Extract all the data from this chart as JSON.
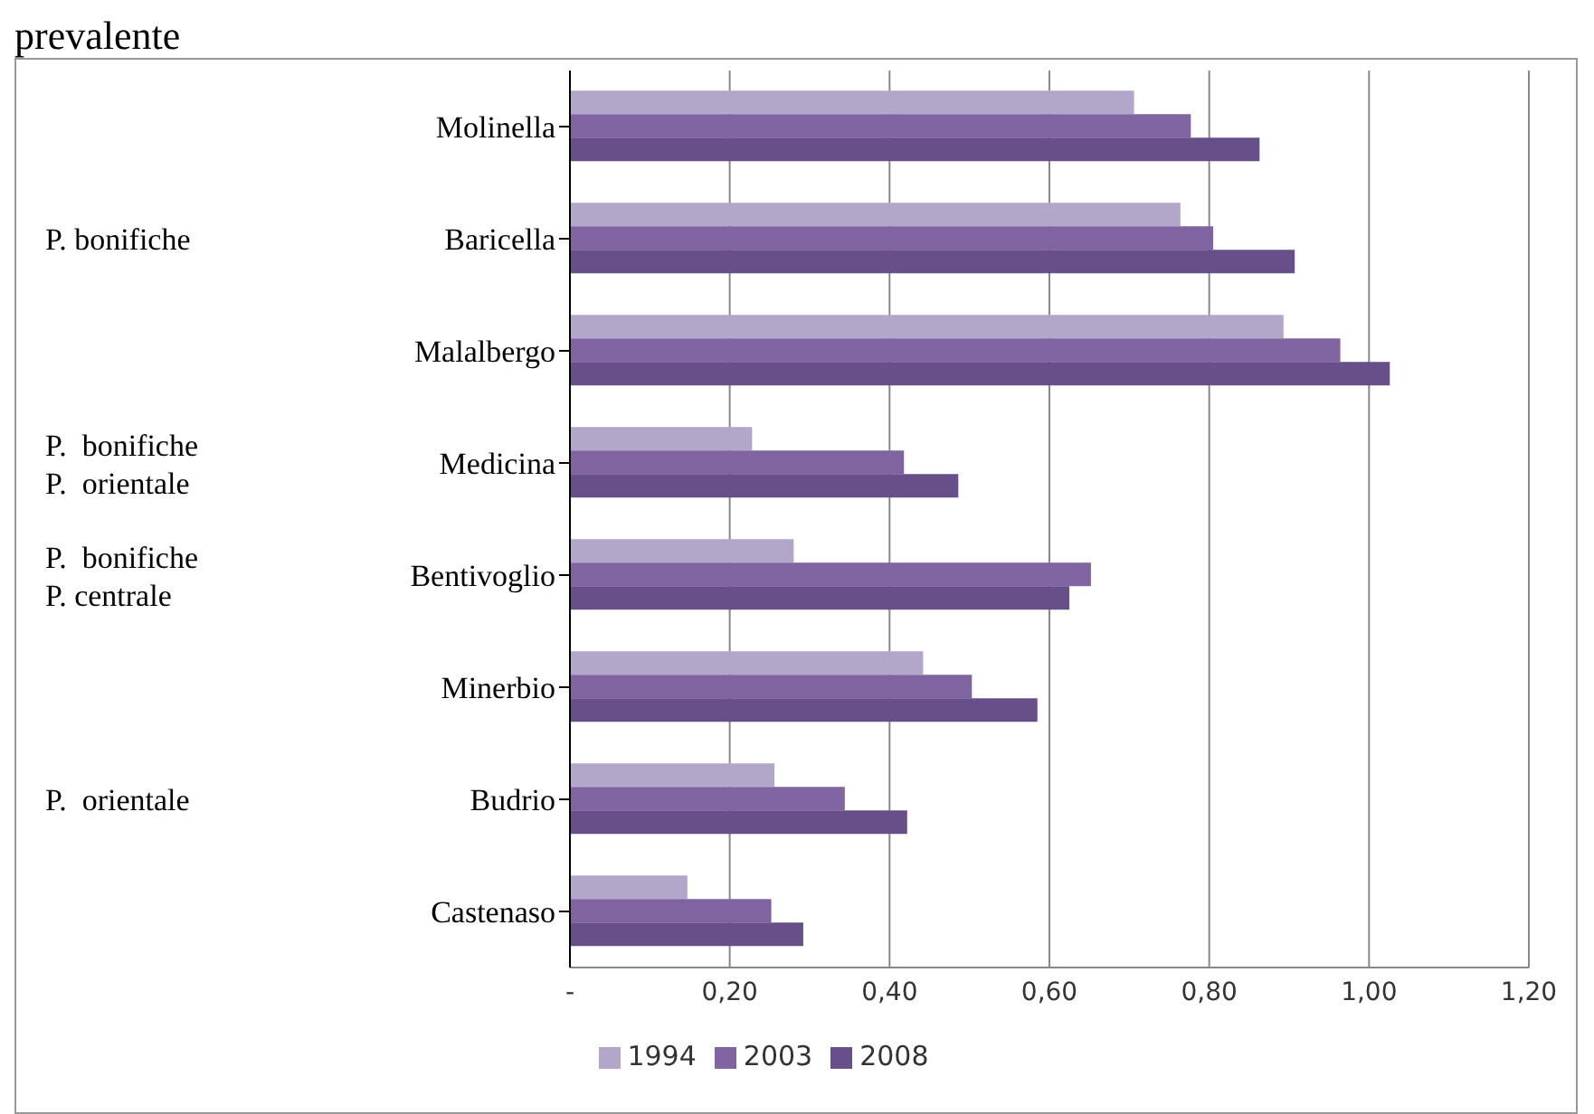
{
  "chart_data": {
    "type": "bar",
    "orientation": "horizontal",
    "title": "prevalente",
    "categories": [
      "Molinella",
      "Baricella",
      "Malalbergo",
      "Medicina",
      "Bentivoglio",
      "Minerbio",
      "Budrio",
      "Castenaso"
    ],
    "series": [
      {
        "name": "1994",
        "color": "#b3a7c9",
        "values": [
          0.706,
          0.764,
          0.893,
          0.228,
          0.28,
          0.442,
          0.256,
          0.147
        ]
      },
      {
        "name": "2003",
        "color": "#8064a2",
        "values": [
          0.777,
          0.805,
          0.964,
          0.418,
          0.652,
          0.503,
          0.344,
          0.252
        ]
      },
      {
        "name": "2008",
        "color": "#67508a",
        "values": [
          0.863,
          0.907,
          1.026,
          0.486,
          0.625,
          0.585,
          0.422,
          0.292
        ]
      }
    ],
    "annotations": [
      "P. bonifiche",
      "P.  bonifiche\nP.  orientale",
      "P.  bonifiche\nP. centrale",
      "P.  orientale"
    ],
    "xlim": [
      0,
      1.2
    ],
    "xticks": [
      {
        "value": 0,
        "label": "-"
      },
      {
        "value": 0.2,
        "label": "0,20"
      },
      {
        "value": 0.4,
        "label": "0,40"
      },
      {
        "value": 0.6,
        "label": "0,60"
      },
      {
        "value": 0.8,
        "label": "0,80"
      },
      {
        "value": 1,
        "label": "1,00"
      },
      {
        "value": 1.2,
        "label": "1,20"
      }
    ],
    "grid": "x",
    "legend": "bottom"
  }
}
